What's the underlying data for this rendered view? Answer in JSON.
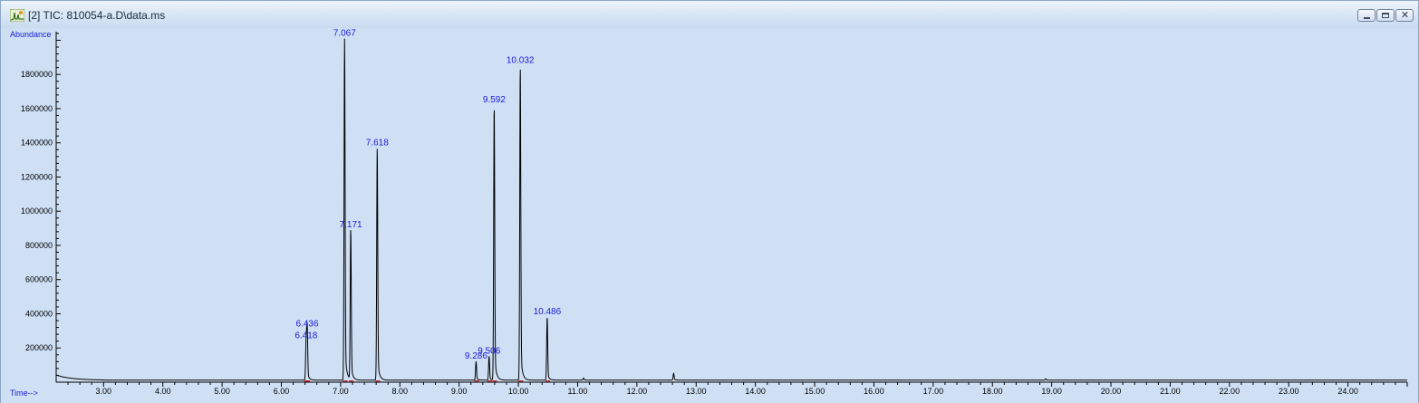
{
  "window": {
    "title": "[2] TIC: 810054-a.D\\data.ms",
    "icon": "chromatogram-icon",
    "controls": [
      "minimize-icon",
      "maximize-icon",
      "close-icon"
    ]
  },
  "chart_data": {
    "type": "line",
    "ylabel": "Abundance",
    "xlabel": "Time-->",
    "xlim": [
      2.2,
      25.0
    ],
    "ylim": [
      0,
      2050000
    ],
    "x_ticks": [
      3.0,
      4.0,
      5.0,
      6.0,
      7.0,
      8.0,
      9.0,
      10.0,
      11.0,
      12.0,
      13.0,
      14.0,
      15.0,
      16.0,
      17.0,
      18.0,
      19.0,
      20.0,
      21.0,
      22.0,
      23.0,
      24.0
    ],
    "x_tick_labels": [
      "3.00",
      "4.00",
      "5.00",
      "6.00",
      "7.00",
      "8.00",
      "9.00",
      "10.00",
      "11.00",
      "12.00",
      "13.00",
      "14.00",
      "15.00",
      "16.00",
      "17.00",
      "18.00",
      "19.00",
      "20.00",
      "21.00",
      "22.00",
      "23.00",
      "24.00"
    ],
    "y_ticks": [
      200000,
      400000,
      600000,
      800000,
      1000000,
      1200000,
      1400000,
      1600000,
      1800000
    ],
    "y_tick_labels": [
      "200000",
      "400000",
      "600000",
      "800000",
      "1000000",
      "1200000",
      "1400000",
      "1600000",
      "1800000"
    ],
    "grid": false,
    "line_color": "#000000",
    "baseline_color": "#d01010",
    "label_color": "#1a1ad8",
    "background": "#cfe0f5",
    "peaks": [
      {
        "label": "6.418",
        "rt": 6.418,
        "height": 230000
      },
      {
        "label": "6.436",
        "rt": 6.436,
        "height": 300000
      },
      {
        "label": "7.067",
        "rt": 7.067,
        "height": 2000000
      },
      {
        "label": "7.171",
        "rt": 7.171,
        "height": 880000
      },
      {
        "label": "7.618",
        "rt": 7.618,
        "height": 1360000
      },
      {
        "label": "9.286",
        "rt": 9.286,
        "height": 110000
      },
      {
        "label": "9.506",
        "rt": 9.506,
        "height": 140000
      },
      {
        "label": "9.592",
        "rt": 9.592,
        "height": 1610000
      },
      {
        "label": "10.032",
        "rt": 10.032,
        "height": 1840000
      },
      {
        "label": "10.486",
        "rt": 10.486,
        "height": 370000
      }
    ],
    "minor_peaks": [
      {
        "rt": 11.1,
        "height": 12000
      },
      {
        "rt": 12.62,
        "height": 40000
      },
      {
        "rt": 18.9,
        "height": 8000
      }
    ],
    "baseline_level": 12000
  }
}
